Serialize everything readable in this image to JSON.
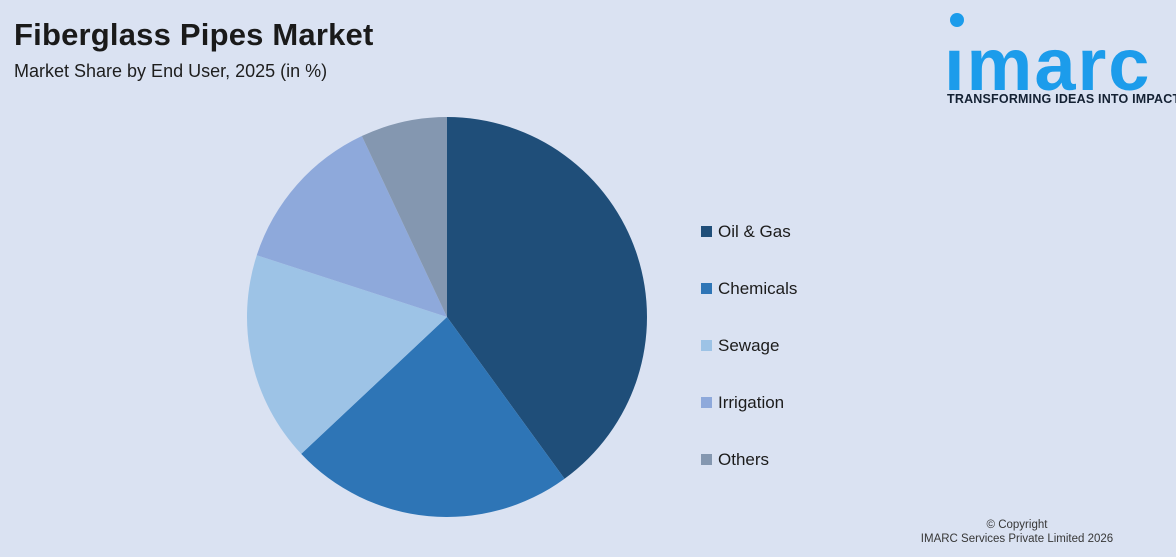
{
  "header": {
    "title": "Fiberglass Pipes Market",
    "subtitle": "Market Share by End User, 2025 (in %)"
  },
  "logo": {
    "wordmark": "imarc",
    "tagline": "TRANSFORMING IDEAS INTO IMPACT",
    "brand_color": "#1C9CEB"
  },
  "chart_data": {
    "type": "pie",
    "title": "Fiberglass Pipes Market",
    "subtitle": "Market Share by End User, 2025 (in %)",
    "unit": "%",
    "labels": [
      "Oil & Gas",
      "Chemicals",
      "Sewage",
      "Irrigation",
      "Others"
    ],
    "values": [
      40,
      23,
      17,
      13,
      7
    ],
    "colors": [
      "#1F4E79",
      "#2E75B6",
      "#9DC3E6",
      "#8EA9DB",
      "#8497B0"
    ],
    "start_angle_deg": 0,
    "direction": "clockwise",
    "legend_position": "right",
    "data_labels_shown": false
  },
  "footer": {
    "line1": "© Copyright",
    "line2": "IMARC Services Private Limited 2026"
  },
  "colors": {
    "background": "#DAE2F2",
    "title_text": "#1A1A1A",
    "footer_text": "#373737"
  }
}
